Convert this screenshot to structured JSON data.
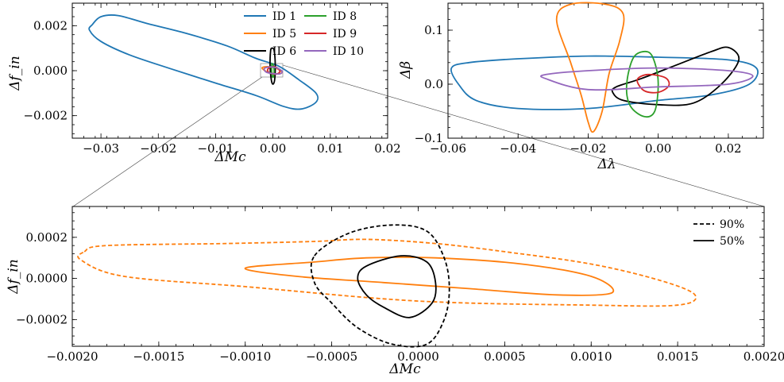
{
  "colors": {
    "ID 1": "#1f77b4",
    "ID 5": "#ff7f0e",
    "ID 6": "#000000",
    "ID 8": "#2ca02c",
    "ID 9": "#d62728",
    "ID 10": "#9467bd"
  },
  "chart_data": [
    {
      "id": "top-left",
      "type": "contour",
      "xlabel": "ΔMc",
      "ylabel": "Δf_in",
      "xlim": [
        -0.035,
        0.02
      ],
      "ylim": [
        -0.003,
        0.003
      ],
      "xticks": [
        -0.03,
        -0.02,
        -0.01,
        0.0,
        0.01,
        0.02
      ],
      "xtick_labels": [
        "−0.03",
        "−0.02",
        "−0.01",
        "0.00",
        "0.01",
        "0.02"
      ],
      "yticks": [
        -0.002,
        0.0,
        0.002
      ],
      "ytick_labels": [
        "−0.002",
        "0.000",
        "0.002"
      ],
      "legend": [
        "ID 1",
        "ID 5",
        "ID 6",
        "ID 8",
        "ID 9",
        "ID 10"
      ],
      "legend_location": "top-right",
      "series": [
        {
          "name": "ID 1",
          "points": [
            [
              -0.0315,
              0.00205
            ],
            [
              -0.03,
              0.0024
            ],
            [
              -0.027,
              0.00245
            ],
            [
              -0.022,
              0.0021
            ],
            [
              -0.015,
              0.00165
            ],
            [
              -0.008,
              0.0011
            ],
            [
              -0.003,
              0.00055
            ],
            [
              0.001,
              0.0002
            ],
            [
              0.0045,
              -0.0004
            ],
            [
              0.0075,
              -0.001
            ],
            [
              0.0075,
              -0.0014
            ],
            [
              0.005,
              -0.0017
            ],
            [
              0.002,
              -0.0016
            ],
            [
              -0.003,
              -0.0011
            ],
            [
              -0.01,
              -0.00055
            ],
            [
              -0.018,
              0.0001
            ],
            [
              -0.025,
              0.0007
            ],
            [
              -0.03,
              0.0013
            ],
            [
              -0.032,
              0.0018
            ],
            [
              -0.0315,
              0.00205
            ]
          ]
        },
        {
          "name": "ID 5",
          "points": [
            [
              -0.0019,
              0.00012
            ],
            [
              -0.001,
              0.00018
            ],
            [
              0.0,
              0.00015
            ],
            [
              0.001,
              5e-05
            ],
            [
              0.0016,
              -8e-05
            ],
            [
              0.001,
              -0.00014
            ],
            [
              0.0,
              -0.00012
            ],
            [
              -0.001,
              -6e-05
            ],
            [
              -0.0019,
              0.00012
            ]
          ]
        },
        {
          "name": "ID 6",
          "points": [
            [
              -0.0004,
              0.0009
            ],
            [
              -0.0001,
              0.001
            ],
            [
              0.0002,
              0.0009
            ],
            [
              0.0004,
              0.0003
            ],
            [
              0.0003,
              -0.0004
            ],
            [
              0.0,
              -0.0006
            ],
            [
              -0.0003,
              -0.0004
            ],
            [
              -0.0005,
              0.0002
            ],
            [
              -0.0004,
              0.0009
            ]
          ]
        },
        {
          "name": "ID 8",
          "points": [
            [
              -0.0002,
              0.0003
            ],
            [
              0.0001,
              0.0002
            ],
            [
              0.0002,
              -0.0001
            ],
            [
              0.0,
              -0.0003
            ],
            [
              -0.0002,
              -0.0001
            ],
            [
              -0.0002,
              0.0003
            ]
          ]
        },
        {
          "name": "ID 9",
          "points": [
            [
              -0.0008,
              0.0001
            ],
            [
              0.0,
              0.00018
            ],
            [
              0.0009,
              0.0001
            ],
            [
              0.0012,
              -5e-05
            ],
            [
              0.0006,
              -0.00015
            ],
            [
              -0.0004,
              -0.00012
            ],
            [
              -0.0009,
              -2e-05
            ],
            [
              -0.0008,
              0.0001
            ]
          ]
        },
        {
          "name": "ID 10",
          "points": [
            [
              -0.0015,
              0.0001
            ],
            [
              -0.0005,
              0.00017
            ],
            [
              0.0007,
              0.00012
            ],
            [
              0.0016,
              -3e-05
            ],
            [
              0.0012,
              -0.00014
            ],
            [
              0.0,
              -0.00013
            ],
            [
              -0.0012,
              -6e-05
            ],
            [
              -0.0015,
              0.0001
            ]
          ]
        }
      ]
    },
    {
      "id": "top-right",
      "type": "contour",
      "xlabel": "Δλ",
      "ylabel": "Δβ",
      "xlim": [
        -0.06,
        0.03
      ],
      "ylim": [
        -0.1,
        0.15
      ],
      "xticks": [
        -0.06,
        -0.04,
        -0.02,
        0.0,
        0.02
      ],
      "xtick_labels": [
        "−0.06",
        "−0.04",
        "−0.02",
        "0.00",
        "0.02"
      ],
      "yticks": [
        -0.1,
        0.0,
        0.1
      ],
      "ytick_labels": [
        "−0.1",
        "0.0",
        "0.1"
      ],
      "series": [
        {
          "name": "ID 1",
          "points": [
            [
              -0.059,
              0.03
            ],
            [
              -0.054,
              0.04
            ],
            [
              -0.04,
              0.047
            ],
            [
              -0.02,
              0.052
            ],
            [
              0.0,
              0.05
            ],
            [
              0.02,
              0.045
            ],
            [
              0.028,
              0.03
            ],
            [
              0.026,
              0.0
            ],
            [
              0.015,
              -0.02
            ],
            [
              0.0,
              -0.03
            ],
            [
              -0.02,
              -0.045
            ],
            [
              -0.04,
              -0.045
            ],
            [
              -0.052,
              -0.03
            ],
            [
              -0.057,
              0.0
            ],
            [
              -0.059,
              0.03
            ]
          ]
        },
        {
          "name": "ID 5",
          "points": [
            [
              -0.029,
              0.12
            ],
            [
              -0.025,
              0.148
            ],
            [
              -0.015,
              0.148
            ],
            [
              -0.01,
              0.13
            ],
            [
              -0.011,
              0.08
            ],
            [
              -0.014,
              0.02
            ],
            [
              -0.016,
              -0.05
            ],
            [
              -0.0185,
              -0.088
            ],
            [
              -0.02,
              -0.07
            ],
            [
              -0.022,
              -0.02
            ],
            [
              -0.025,
              0.04
            ],
            [
              -0.029,
              0.12
            ]
          ]
        },
        {
          "name": "ID 6",
          "points": [
            [
              -0.012,
              -0.005
            ],
            [
              -0.005,
              0.01
            ],
            [
              0.005,
              0.035
            ],
            [
              0.015,
              0.06
            ],
            [
              0.02,
              0.068
            ],
            [
              0.023,
              0.045
            ],
            [
              0.018,
              0.0
            ],
            [
              0.01,
              -0.035
            ],
            [
              0.0,
              -0.038
            ],
            [
              -0.01,
              -0.03
            ],
            [
              -0.013,
              -0.015
            ],
            [
              -0.012,
              -0.005
            ]
          ]
        },
        {
          "name": "ID 8",
          "points": [
            [
              -0.007,
              0.05
            ],
            [
              -0.003,
              0.06
            ],
            [
              -0.001,
              0.04
            ],
            [
              0.0,
              0.0
            ],
            [
              -0.001,
              -0.05
            ],
            [
              -0.004,
              -0.06
            ],
            [
              -0.008,
              -0.04
            ],
            [
              -0.009,
              0.0
            ],
            [
              -0.007,
              0.05
            ]
          ]
        },
        {
          "name": "ID 9",
          "points": [
            [
              -0.006,
              0.008
            ],
            [
              -0.003,
              0.018
            ],
            [
              0.002,
              0.012
            ],
            [
              0.003,
              -0.003
            ],
            [
              0.0,
              -0.015
            ],
            [
              -0.004,
              -0.012
            ],
            [
              -0.006,
              0.008
            ]
          ]
        },
        {
          "name": "ID 10",
          "points": [
            [
              -0.032,
              0.018
            ],
            [
              -0.02,
              0.025
            ],
            [
              0.0,
              0.03
            ],
            [
              0.02,
              0.025
            ],
            [
              0.027,
              0.015
            ],
            [
              0.02,
              0.0
            ],
            [
              0.0,
              -0.005
            ],
            [
              -0.02,
              -0.01
            ],
            [
              -0.032,
              0.01
            ],
            [
              -0.032,
              0.018
            ]
          ]
        }
      ]
    },
    {
      "id": "bottom",
      "type": "contour",
      "xlabel": "ΔMc",
      "ylabel": "Δf_in",
      "xlim": [
        -0.002,
        0.002
      ],
      "ylim": [
        -0.00033,
        0.00035
      ],
      "xticks": [
        -0.002,
        -0.0015,
        -0.001,
        -0.0005,
        0.0,
        0.0005,
        0.001,
        0.0015,
        0.002
      ],
      "xtick_labels": [
        "−0.0020",
        "−0.0015",
        "−0.0010",
        "−0.0005",
        "0.0000",
        "0.0005",
        "0.0010",
        "0.0015",
        "0.0020"
      ],
      "yticks": [
        -0.0002,
        0.0,
        0.0002
      ],
      "ytick_labels": [
        "−0.0002",
        "0.0000",
        "0.0002"
      ],
      "legend": [
        "90%",
        "50%"
      ],
      "legend_location": "top-right",
      "series": [
        {
          "name": "ID 5",
          "level": "90%",
          "points": [
            [
              -0.00193,
              0.00013
            ],
            [
              -0.0018,
              0.00016
            ],
            [
              -0.0011,
              0.00017
            ],
            [
              -0.0006,
              0.00018
            ],
            [
              -0.0003,
              0.00019
            ],
            [
              0.0001,
              0.00017
            ],
            [
              0.0005,
              0.00013
            ],
            [
              0.001,
              7e-05
            ],
            [
              0.0014,
              -1e-05
            ],
            [
              0.0016,
              -8e-05
            ],
            [
              0.0015,
              -0.00013
            ],
            [
              0.001,
              -0.00013
            ],
            [
              0.0,
              -0.00011
            ],
            [
              -0.001,
              -4e-05
            ],
            [
              -0.0017,
              1e-05
            ],
            [
              -0.00195,
              9e-05
            ],
            [
              -0.00193,
              0.00013
            ]
          ]
        },
        {
          "name": "ID 5",
          "level": "50%",
          "points": [
            [
              -0.001,
              5e-05
            ],
            [
              -0.0006,
              8e-05
            ],
            [
              -0.0003,
              0.0001
            ],
            [
              0.0001,
              0.0001
            ],
            [
              0.0006,
              7e-05
            ],
            [
              0.001,
              1e-05
            ],
            [
              0.00112,
              -7e-05
            ],
            [
              0.0008,
              -8e-05
            ],
            [
              0.0003,
              -5e-05
            ],
            [
              -0.0002,
              -2e-05
            ],
            [
              -0.0007,
              1e-05
            ],
            [
              -0.001,
              5e-05
            ]
          ]
        },
        {
          "name": "ID 6",
          "level": "90%",
          "points": [
            [
              -0.0006,
              0.00011
            ],
            [
              -0.0004,
              0.00022
            ],
            [
              -0.00015,
              0.00026
            ],
            [
              5e-05,
              0.00023
            ],
            [
              0.00015,
              0.0001
            ],
            [
              0.00018,
              -5e-05
            ],
            [
              0.00015,
              -0.0002
            ],
            [
              5e-05,
              -0.00032
            ],
            [
              -0.00015,
              -0.00032
            ],
            [
              -0.00035,
              -0.00024
            ],
            [
              -0.0005,
              -0.00012
            ],
            [
              -0.0006,
              -2e-05
            ],
            [
              -0.0006,
              0.00011
            ]
          ]
        },
        {
          "name": "ID 6",
          "level": "50%",
          "points": [
            [
              -0.0003,
              6e-05
            ],
            [
              -0.0001,
              0.00011
            ],
            [
              5e-05,
              8e-05
            ],
            [
              0.0001,
              -2e-05
            ],
            [
              8e-05,
              -0.00012
            ],
            [
              -5e-05,
              -0.00019
            ],
            [
              -0.0002,
              -0.00014
            ],
            [
              -0.0003,
              -8e-05
            ],
            [
              -0.00035,
              0.0
            ],
            [
              -0.0003,
              6e-05
            ]
          ]
        }
      ]
    }
  ]
}
